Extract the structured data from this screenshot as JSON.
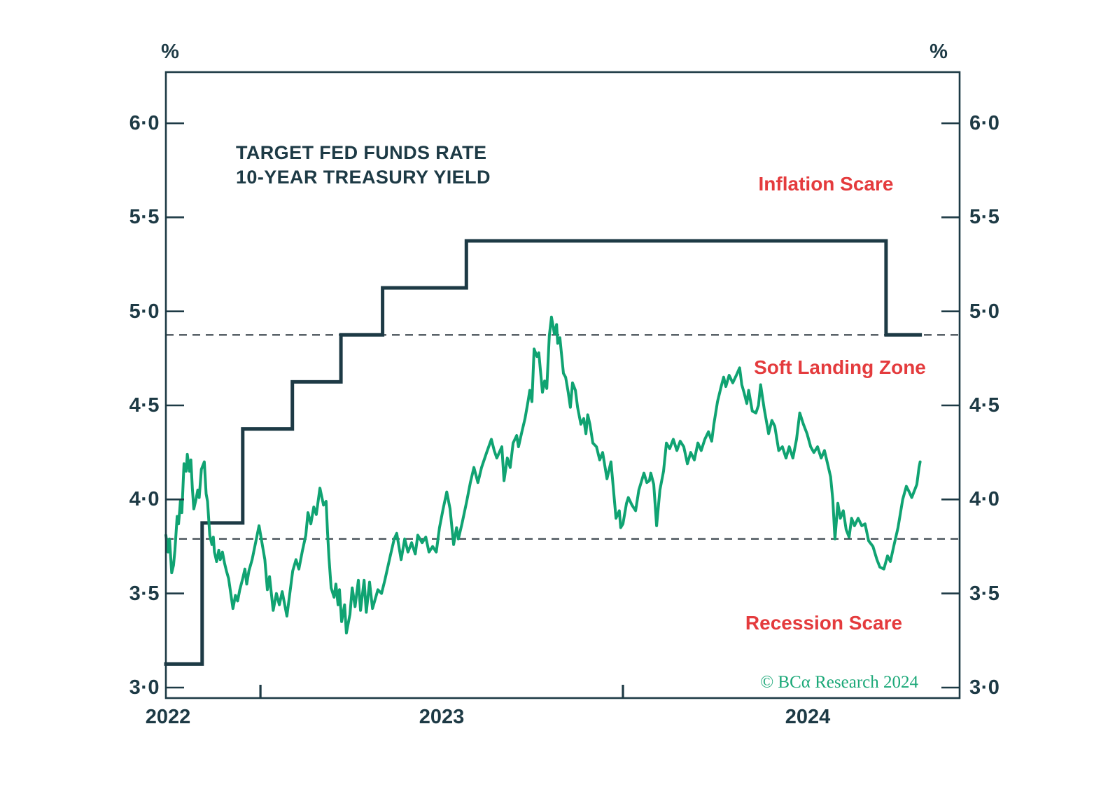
{
  "header": {
    "unit_left": "%",
    "unit_right": "%"
  },
  "title": {
    "line1": "TARGET FED FUNDS RATE",
    "line2": "10-YEAR TREASURY YIELD"
  },
  "annotations": {
    "inflation": "Inflation Scare",
    "soft_landing": "Soft Landing Zone",
    "recession": "Recession Scare",
    "copyright": "© BCα Research 2024"
  },
  "colors": {
    "navy": "#1d3a45",
    "green": "#10a372",
    "red": "#e43b3d",
    "copyright_green": "#1ba878",
    "dashed": "#333f46",
    "background": "#ffffff"
  },
  "x_axis": {
    "domain": [
      2022.739,
      2024.929
    ],
    "tick_years": [
      2023,
      2024
    ],
    "year_labels": [
      "2022",
      "2023",
      "2024"
    ],
    "label_positions": [
      2022.745,
      2023.5,
      2024.51
    ]
  },
  "y_axis": {
    "domain": [
      2.944,
      6.272
    ],
    "ticks": [
      3.0,
      3.5,
      4.0,
      4.5,
      5.0,
      5.5,
      6.0
    ],
    "tick_labels": [
      "3·0",
      "3·5",
      "4·0",
      "4·5",
      "5·0",
      "5·5",
      "6·0"
    ]
  },
  "chart_data": {
    "type": "line",
    "title": "TARGET FED FUNDS RATE / 10-YEAR TREASURY YIELD",
    "x_unit": "decimal_year",
    "y_unit": "percent",
    "ylim": [
      3.0,
      6.0
    ],
    "grid": false,
    "reference_lines": [
      {
        "value": 4.875,
        "style": "dashed"
      },
      {
        "value": 3.79,
        "style": "dashed"
      }
    ],
    "series": [
      {
        "name": "Target Fed Funds Rate",
        "style": "step",
        "color": "#1d3a45",
        "end_year": 2024.82,
        "points": [
          [
            2022.739,
            3.125
          ],
          [
            2022.839,
            3.875
          ],
          [
            2022.951,
            4.375
          ],
          [
            2023.088,
            4.625
          ],
          [
            2023.222,
            4.875
          ],
          [
            2023.337,
            5.125
          ],
          [
            2023.568,
            5.375
          ],
          [
            2024.726,
            4.875
          ]
        ]
      },
      {
        "name": "10-Year Treasury Yield",
        "style": "line",
        "color": "#10a372",
        "points": [
          [
            2022.739,
            3.81
          ],
          [
            2022.745,
            3.72
          ],
          [
            2022.749,
            3.79
          ],
          [
            2022.755,
            3.61
          ],
          [
            2022.76,
            3.65
          ],
          [
            2022.764,
            3.73
          ],
          [
            2022.77,
            3.91
          ],
          [
            2022.774,
            3.87
          ],
          [
            2022.777,
            3.94
          ],
          [
            2022.779,
            3.99
          ],
          [
            2022.783,
            3.93
          ],
          [
            2022.789,
            4.19
          ],
          [
            2022.795,
            4.15
          ],
          [
            2022.798,
            4.24
          ],
          [
            2022.804,
            4.15
          ],
          [
            2022.808,
            4.21
          ],
          [
            2022.812,
            4.06
          ],
          [
            2022.816,
            3.95
          ],
          [
            2022.822,
            4.0
          ],
          [
            2022.827,
            4.05
          ],
          [
            2022.831,
            4.01
          ],
          [
            2022.837,
            4.16
          ],
          [
            2022.845,
            4.2
          ],
          [
            2022.85,
            4.03
          ],
          [
            2022.854,
            3.99
          ],
          [
            2022.86,
            3.81
          ],
          [
            2022.866,
            3.76
          ],
          [
            2022.87,
            3.8
          ],
          [
            2022.873,
            3.72
          ],
          [
            2022.879,
            3.67
          ],
          [
            2022.885,
            3.73
          ],
          [
            2022.889,
            3.68
          ],
          [
            2022.895,
            3.72
          ],
          [
            2022.901,
            3.66
          ],
          [
            2022.906,
            3.62
          ],
          [
            2022.912,
            3.58
          ],
          [
            2022.918,
            3.5
          ],
          [
            2022.924,
            3.42
          ],
          [
            2022.931,
            3.49
          ],
          [
            2022.937,
            3.46
          ],
          [
            2022.943,
            3.52
          ],
          [
            2022.951,
            3.58
          ],
          [
            2022.957,
            3.63
          ],
          [
            2022.962,
            3.55
          ],
          [
            2022.968,
            3.62
          ],
          [
            2022.977,
            3.68
          ],
          [
            2022.996,
            3.86
          ],
          [
            2023.012,
            3.68
          ],
          [
            2023.019,
            3.52
          ],
          [
            2023.025,
            3.59
          ],
          [
            2023.035,
            3.41
          ],
          [
            2023.044,
            3.5
          ],
          [
            2023.052,
            3.44
          ],
          [
            2023.06,
            3.51
          ],
          [
            2023.073,
            3.38
          ],
          [
            2023.089,
            3.62
          ],
          [
            2023.098,
            3.68
          ],
          [
            2023.106,
            3.63
          ],
          [
            2023.116,
            3.73
          ],
          [
            2023.125,
            3.81
          ],
          [
            2023.131,
            3.93
          ],
          [
            2023.139,
            3.87
          ],
          [
            2023.147,
            3.96
          ],
          [
            2023.154,
            3.92
          ],
          [
            2023.164,
            4.06
          ],
          [
            2023.174,
            3.97
          ],
          [
            2023.181,
            3.99
          ],
          [
            2023.185,
            3.83
          ],
          [
            2023.189,
            3.69
          ],
          [
            2023.195,
            3.53
          ],
          [
            2023.203,
            3.48
          ],
          [
            2023.208,
            3.55
          ],
          [
            2023.214,
            3.44
          ],
          [
            2023.218,
            3.52
          ],
          [
            2023.224,
            3.35
          ],
          [
            2023.232,
            3.44
          ],
          [
            2023.237,
            3.29
          ],
          [
            2023.247,
            3.39
          ],
          [
            2023.253,
            3.53
          ],
          [
            2023.261,
            3.43
          ],
          [
            2023.27,
            3.57
          ],
          [
            2023.276,
            3.41
          ],
          [
            2023.286,
            3.57
          ],
          [
            2023.292,
            3.4
          ],
          [
            2023.301,
            3.56
          ],
          [
            2023.309,
            3.42
          ],
          [
            2023.324,
            3.52
          ],
          [
            2023.334,
            3.5
          ],
          [
            2023.343,
            3.57
          ],
          [
            2023.357,
            3.69
          ],
          [
            2023.369,
            3.79
          ],
          [
            2023.376,
            3.82
          ],
          [
            2023.388,
            3.68
          ],
          [
            2023.398,
            3.79
          ],
          [
            2023.407,
            3.72
          ],
          [
            2023.417,
            3.77
          ],
          [
            2023.427,
            3.71
          ],
          [
            2023.434,
            3.81
          ],
          [
            2023.446,
            3.77
          ],
          [
            2023.456,
            3.8
          ],
          [
            2023.465,
            3.72
          ],
          [
            2023.475,
            3.75
          ],
          [
            2023.485,
            3.72
          ],
          [
            2023.494,
            3.85
          ],
          [
            2023.504,
            3.95
          ],
          [
            2023.514,
            4.04
          ],
          [
            2023.523,
            3.95
          ],
          [
            2023.533,
            3.76
          ],
          [
            2023.541,
            3.85
          ],
          [
            2023.546,
            3.79
          ],
          [
            2023.556,
            3.87
          ],
          [
            2023.569,
            3.99
          ],
          [
            2023.579,
            4.09
          ],
          [
            2023.589,
            4.17
          ],
          [
            2023.6,
            4.09
          ],
          [
            2023.61,
            4.17
          ],
          [
            2023.624,
            4.25
          ],
          [
            2023.637,
            4.32
          ],
          [
            2023.645,
            4.26
          ],
          [
            2023.652,
            4.22
          ],
          [
            2023.666,
            4.28
          ],
          [
            2023.672,
            4.1
          ],
          [
            2023.681,
            4.22
          ],
          [
            2023.689,
            4.17
          ],
          [
            2023.697,
            4.3
          ],
          [
            2023.707,
            4.34
          ],
          [
            2023.712,
            4.28
          ],
          [
            2023.72,
            4.35
          ],
          [
            2023.73,
            4.43
          ],
          [
            2023.739,
            4.53
          ],
          [
            2023.743,
            4.58
          ],
          [
            2023.749,
            4.52
          ],
          [
            2023.755,
            4.8
          ],
          [
            2023.763,
            4.76
          ],
          [
            2023.768,
            4.78
          ],
          [
            2023.778,
            4.57
          ],
          [
            2023.784,
            4.63
          ],
          [
            2023.79,
            4.59
          ],
          [
            2023.797,
            4.87
          ],
          [
            2023.803,
            4.97
          ],
          [
            2023.811,
            4.88
          ],
          [
            2023.817,
            4.93
          ],
          [
            2023.82,
            4.83
          ],
          [
            2023.826,
            4.86
          ],
          [
            2023.836,
            4.67
          ],
          [
            2023.842,
            4.65
          ],
          [
            2023.849,
            4.57
          ],
          [
            2023.855,
            4.49
          ],
          [
            2023.861,
            4.62
          ],
          [
            2023.869,
            4.58
          ],
          [
            2023.875,
            4.49
          ],
          [
            2023.884,
            4.4
          ],
          [
            2023.892,
            4.43
          ],
          [
            2023.898,
            4.35
          ],
          [
            2023.903,
            4.45
          ],
          [
            2023.909,
            4.4
          ],
          [
            2023.917,
            4.3
          ],
          [
            2023.927,
            4.28
          ],
          [
            2023.936,
            4.21
          ],
          [
            2023.944,
            4.25
          ],
          [
            2023.956,
            4.11
          ],
          [
            2023.967,
            4.2
          ],
          [
            2023.981,
            3.9
          ],
          [
            2023.99,
            3.94
          ],
          [
            2023.994,
            3.85
          ],
          [
            2024.0,
            3.87
          ],
          [
            2024.01,
            3.98
          ],
          [
            2024.015,
            4.01
          ],
          [
            2024.025,
            3.97
          ],
          [
            2024.035,
            3.94
          ],
          [
            2024.044,
            4.05
          ],
          [
            2024.058,
            4.14
          ],
          [
            2024.066,
            4.09
          ],
          [
            2024.073,
            4.1
          ],
          [
            2024.077,
            4.14
          ],
          [
            2024.085,
            4.08
          ],
          [
            2024.093,
            3.86
          ],
          [
            2024.102,
            4.05
          ],
          [
            2024.112,
            4.15
          ],
          [
            2024.12,
            4.3
          ],
          [
            2024.129,
            4.27
          ],
          [
            2024.139,
            4.32
          ],
          [
            2024.149,
            4.26
          ],
          [
            2024.158,
            4.31
          ],
          [
            2024.168,
            4.28
          ],
          [
            2024.178,
            4.19
          ],
          [
            2024.187,
            4.25
          ],
          [
            2024.197,
            4.21
          ],
          [
            2024.207,
            4.3
          ],
          [
            2024.216,
            4.26
          ],
          [
            2024.226,
            4.32
          ],
          [
            2024.236,
            4.36
          ],
          [
            2024.245,
            4.31
          ],
          [
            2024.251,
            4.4
          ],
          [
            2024.261,
            4.52
          ],
          [
            2024.271,
            4.6
          ],
          [
            2024.278,
            4.65
          ],
          [
            2024.284,
            4.6
          ],
          [
            2024.293,
            4.66
          ],
          [
            2024.303,
            4.62
          ],
          [
            2024.313,
            4.66
          ],
          [
            2024.322,
            4.7
          ],
          [
            2024.328,
            4.61
          ],
          [
            2024.334,
            4.57
          ],
          [
            2024.342,
            4.51
          ],
          [
            2024.347,
            4.58
          ],
          [
            2024.357,
            4.47
          ],
          [
            2024.367,
            4.46
          ],
          [
            2024.374,
            4.5
          ],
          [
            2024.38,
            4.61
          ],
          [
            2024.39,
            4.48
          ],
          [
            2024.402,
            4.35
          ],
          [
            2024.411,
            4.42
          ],
          [
            2024.419,
            4.39
          ],
          [
            2024.43,
            4.26
          ],
          [
            2024.44,
            4.28
          ],
          [
            2024.45,
            4.22
          ],
          [
            2024.459,
            4.28
          ],
          [
            2024.469,
            4.22
          ],
          [
            2024.479,
            4.32
          ],
          [
            2024.488,
            4.46
          ],
          [
            2024.498,
            4.4
          ],
          [
            2024.508,
            4.35
          ],
          [
            2024.518,
            4.28
          ],
          [
            2024.527,
            4.25
          ],
          [
            2024.537,
            4.28
          ],
          [
            2024.547,
            4.22
          ],
          [
            2024.556,
            4.26
          ],
          [
            2024.566,
            4.18
          ],
          [
            2024.573,
            4.12
          ],
          [
            2024.579,
            4.0
          ],
          [
            2024.585,
            3.79
          ],
          [
            2024.593,
            3.98
          ],
          [
            2024.6,
            3.9
          ],
          [
            2024.608,
            3.94
          ],
          [
            2024.616,
            3.84
          ],
          [
            2024.624,
            3.8
          ],
          [
            2024.631,
            3.9
          ],
          [
            2024.639,
            3.86
          ],
          [
            2024.649,
            3.9
          ],
          [
            2024.659,
            3.86
          ],
          [
            2024.668,
            3.87
          ],
          [
            2024.678,
            3.78
          ],
          [
            2024.69,
            3.75
          ],
          [
            2024.701,
            3.68
          ],
          [
            2024.709,
            3.64
          ],
          [
            2024.72,
            3.63
          ],
          [
            2024.73,
            3.7
          ],
          [
            2024.738,
            3.67
          ],
          [
            2024.747,
            3.75
          ],
          [
            2024.759,
            3.85
          ],
          [
            2024.772,
            4.0
          ],
          [
            2024.782,
            4.07
          ],
          [
            2024.79,
            4.04
          ],
          [
            2024.797,
            4.01
          ],
          [
            2024.805,
            4.05
          ],
          [
            2024.811,
            4.08
          ],
          [
            2024.817,
            4.17
          ],
          [
            2024.82,
            4.2
          ]
        ]
      }
    ]
  }
}
